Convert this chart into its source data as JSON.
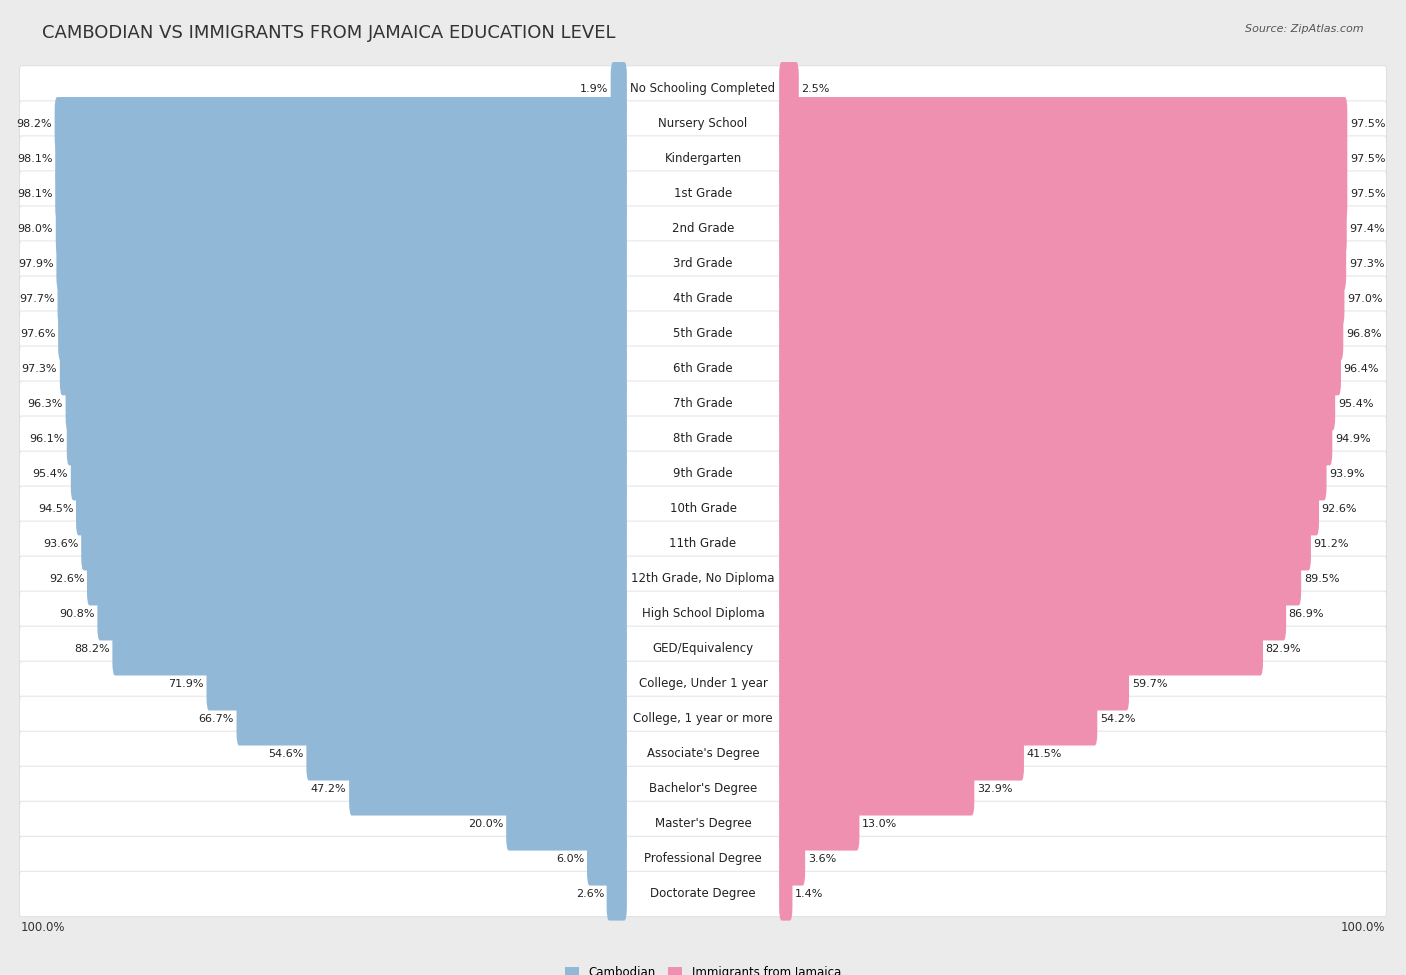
{
  "title": "CAMBODIAN VS IMMIGRANTS FROM JAMAICA EDUCATION LEVEL",
  "source": "Source: ZipAtlas.com",
  "categories": [
    "No Schooling Completed",
    "Nursery School",
    "Kindergarten",
    "1st Grade",
    "2nd Grade",
    "3rd Grade",
    "4th Grade",
    "5th Grade",
    "6th Grade",
    "7th Grade",
    "8th Grade",
    "9th Grade",
    "10th Grade",
    "11th Grade",
    "12th Grade, No Diploma",
    "High School Diploma",
    "GED/Equivalency",
    "College, Under 1 year",
    "College, 1 year or more",
    "Associate's Degree",
    "Bachelor's Degree",
    "Master's Degree",
    "Professional Degree",
    "Doctorate Degree"
  ],
  "cambodian": [
    1.9,
    98.2,
    98.1,
    98.1,
    98.0,
    97.9,
    97.7,
    97.6,
    97.3,
    96.3,
    96.1,
    95.4,
    94.5,
    93.6,
    92.6,
    90.8,
    88.2,
    71.9,
    66.7,
    54.6,
    47.2,
    20.0,
    6.0,
    2.6
  ],
  "jamaica": [
    2.5,
    97.5,
    97.5,
    97.5,
    97.4,
    97.3,
    97.0,
    96.8,
    96.4,
    95.4,
    94.9,
    93.9,
    92.6,
    91.2,
    89.5,
    86.9,
    82.9,
    59.7,
    54.2,
    41.5,
    32.9,
    13.0,
    3.6,
    1.4
  ],
  "cambodian_color": "#92b8d8",
  "jamaica_color": "#f090b0",
  "bg_color": "#ebebeb",
  "row_bg_color": "#ffffff",
  "row_alt_color": "#f5f5f5",
  "title_fontsize": 13,
  "label_fontsize": 8.5,
  "value_fontsize": 8.0,
  "axis_fontsize": 8.5,
  "legend_cambodian": "Cambodian",
  "legend_jamaica": "Immigrants from Jamaica",
  "axis_label_left": "100.0%",
  "axis_label_right": "100.0%"
}
